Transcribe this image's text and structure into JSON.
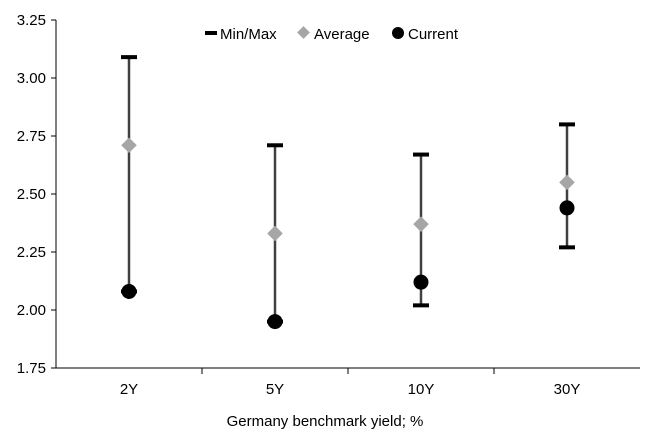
{
  "chart_data": {
    "type": "scatter",
    "categories": [
      "2Y",
      "5Y",
      "10Y",
      "30Y"
    ],
    "series": [
      {
        "name": "Min/Max",
        "min": [
          2.08,
          1.95,
          2.02,
          2.27
        ],
        "max": [
          3.09,
          2.71,
          2.67,
          2.8
        ],
        "color": "#000000"
      },
      {
        "name": "Average",
        "values": [
          2.71,
          2.33,
          2.37,
          2.55
        ],
        "color": "#a6a6a6"
      },
      {
        "name": "Current",
        "values": [
          2.08,
          1.95,
          2.12,
          2.44
        ],
        "color": "#000000"
      }
    ],
    "title": "",
    "xlabel": "Germany benchmark yield; %",
    "ylabel": "",
    "ylim": [
      1.75,
      3.25
    ],
    "yticks": [
      "1.75",
      "2.00",
      "2.25",
      "2.50",
      "2.75",
      "3.00",
      "3.25"
    ],
    "grid": false,
    "legend_position": "top"
  }
}
